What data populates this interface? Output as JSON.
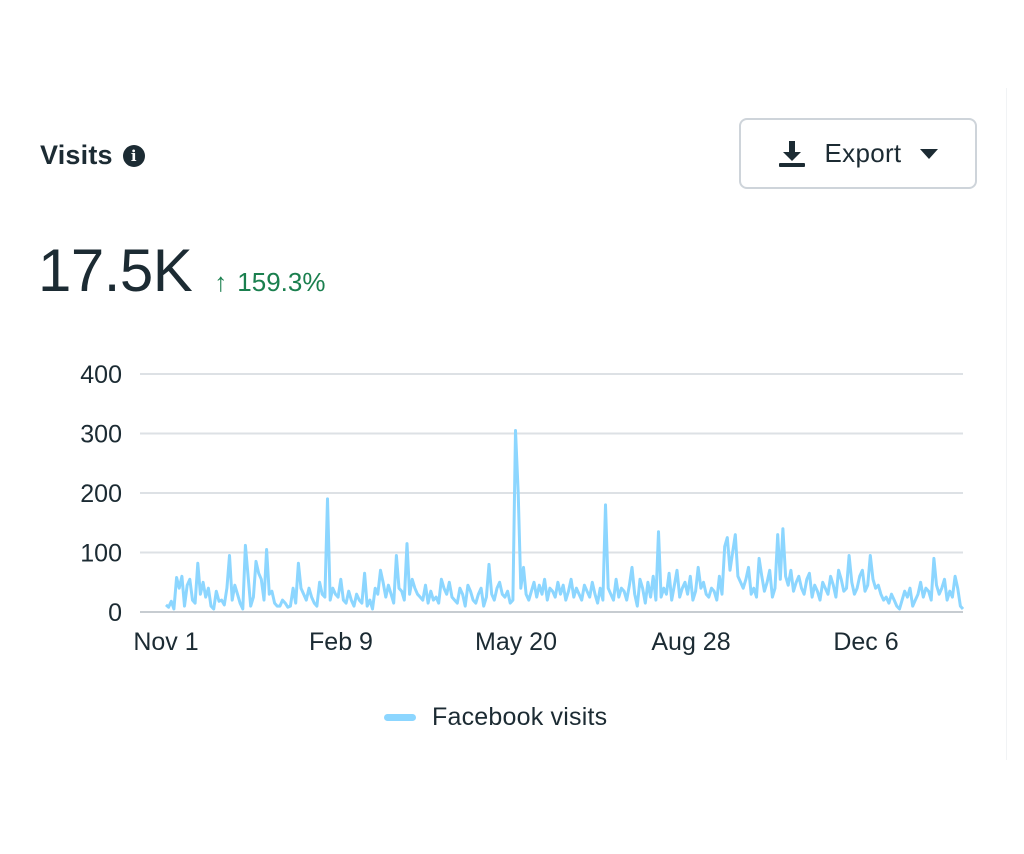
{
  "header": {
    "title": "Visits",
    "info_icon": "info-icon"
  },
  "export_button": {
    "label": "Export",
    "icon": "download-icon",
    "caret": "caret-down-icon"
  },
  "metric": {
    "value": "17.5K",
    "change": "159.3%",
    "direction": "up",
    "change_color": "#1a7f4e"
  },
  "chart_data": {
    "type": "line",
    "title": "",
    "xlabel": "",
    "ylabel": "",
    "ylim": [
      0,
      400
    ],
    "y_ticks": [
      "0",
      "100",
      "200",
      "300",
      "400"
    ],
    "x_ticks": [
      "Nov 1",
      "Feb 9",
      "May 20",
      "Aug 28",
      "Dec 6"
    ],
    "grid": true,
    "legend_position": "bottom",
    "series": [
      {
        "name": "Facebook visits",
        "color": "#8cd6ff",
        "values": [
          12,
          8,
          18,
          5,
          58,
          40,
          60,
          10,
          45,
          55,
          20,
          15,
          82,
          30,
          50,
          25,
          40,
          10,
          5,
          35,
          18,
          20,
          12,
          40,
          95,
          20,
          45,
          30,
          15,
          5,
          112,
          60,
          10,
          25,
          85,
          65,
          55,
          20,
          105,
          30,
          35,
          15,
          10,
          10,
          20,
          15,
          8,
          10,
          40,
          15,
          82,
          40,
          30,
          20,
          40,
          25,
          15,
          10,
          50,
          30,
          25,
          190,
          20,
          40,
          30,
          25,
          55,
          20,
          15,
          35,
          20,
          10,
          30,
          20,
          15,
          65,
          10,
          20,
          5,
          40,
          30,
          70,
          50,
          25,
          45,
          30,
          15,
          95,
          40,
          35,
          20,
          115,
          30,
          55,
          40,
          30,
          25,
          20,
          45,
          15,
          35,
          20,
          25,
          15,
          55,
          40,
          30,
          50,
          25,
          20,
          15,
          40,
          30,
          10,
          45,
          35,
          20,
          15,
          30,
          40,
          10,
          25,
          80,
          30,
          20,
          40,
          50,
          30,
          25,
          35,
          15,
          20,
          305,
          200,
          40,
          75,
          30,
          20,
          35,
          50,
          25,
          45,
          30,
          55,
          20,
          40,
          35,
          25,
          50,
          30,
          45,
          20,
          35,
          55,
          25,
          40,
          30,
          20,
          45,
          35,
          25,
          50,
          30,
          15,
          40,
          20,
          180,
          40,
          30,
          20,
          55,
          25,
          40,
          35,
          20,
          45,
          75,
          30,
          10,
          55,
          40,
          15,
          50,
          25,
          60,
          20,
          135,
          25,
          40,
          30,
          65,
          20,
          45,
          70,
          25,
          40,
          50,
          30,
          60,
          20,
          35,
          75,
          40,
          50,
          30,
          25,
          40,
          35,
          20,
          60,
          30,
          110,
          125,
          70,
          100,
          130,
          60,
          50,
          40,
          55,
          75,
          30,
          40,
          25,
          90,
          60,
          35,
          50,
          70,
          25,
          40,
          130,
          55,
          140,
          60,
          45,
          70,
          35,
          50,
          60,
          40,
          30,
          55,
          65,
          25,
          45,
          35,
          20,
          50,
          40,
          30,
          60,
          45,
          25,
          70,
          55,
          35,
          40,
          95,
          50,
          30,
          40,
          60,
          70,
          35,
          45,
          95,
          55,
          40,
          45,
          30,
          20,
          25,
          15,
          30,
          20,
          10,
          5,
          20,
          35,
          25,
          40,
          10,
          20,
          30,
          50,
          25,
          40,
          35,
          20,
          90,
          45,
          30,
          40,
          55,
          20,
          35,
          25,
          60,
          40,
          10,
          5
        ]
      }
    ]
  }
}
